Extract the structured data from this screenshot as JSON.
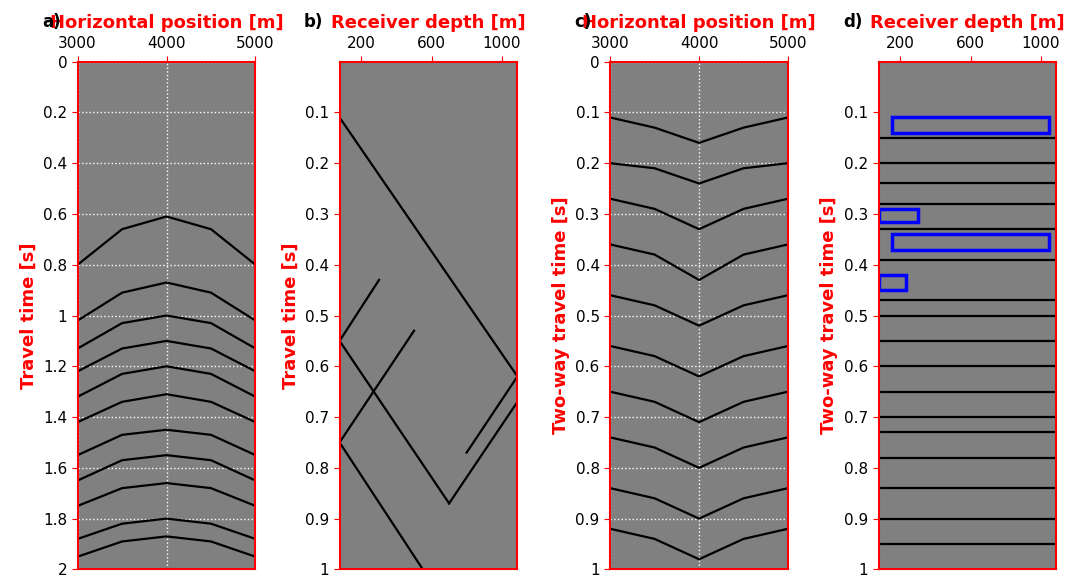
{
  "chart_data": [
    {
      "type": "line",
      "panel": "a)",
      "xlabel": "Horizontal position [m]",
      "ylabel": "Travel time [s]",
      "xlim": [
        3000,
        5000
      ],
      "xticks": [
        3000,
        4000,
        5000
      ],
      "ylim": [
        2,
        0
      ],
      "yticks": [
        0,
        0.2,
        0.4,
        0.6,
        0.8,
        1,
        1.2,
        1.4,
        1.6,
        1.8,
        2
      ],
      "grid": true,
      "color": "#000000",
      "events": [
        [
          [
            3000,
            0.8
          ],
          [
            3500,
            0.66
          ],
          [
            4000,
            0.61
          ],
          [
            4500,
            0.66
          ],
          [
            5000,
            0.8
          ]
        ],
        [
          [
            3000,
            1.02
          ],
          [
            3500,
            0.91
          ],
          [
            4000,
            0.87
          ],
          [
            4500,
            0.91
          ],
          [
            5000,
            1.02
          ]
        ],
        [
          [
            3000,
            1.13
          ],
          [
            3500,
            1.03
          ],
          [
            4000,
            1.0
          ],
          [
            4500,
            1.03
          ],
          [
            5000,
            1.13
          ]
        ],
        [
          [
            3000,
            1.22
          ],
          [
            3500,
            1.13
          ],
          [
            4000,
            1.1
          ],
          [
            4500,
            1.13
          ],
          [
            5000,
            1.22
          ]
        ],
        [
          [
            3000,
            1.32
          ],
          [
            3500,
            1.23
          ],
          [
            4000,
            1.2
          ],
          [
            4500,
            1.23
          ],
          [
            5000,
            1.32
          ]
        ],
        [
          [
            3000,
            1.42
          ],
          [
            3500,
            1.34
          ],
          [
            4000,
            1.31
          ],
          [
            4500,
            1.34
          ],
          [
            5000,
            1.42
          ]
        ],
        [
          [
            3000,
            1.55
          ],
          [
            3500,
            1.47
          ],
          [
            4000,
            1.45
          ],
          [
            4500,
            1.47
          ],
          [
            5000,
            1.55
          ]
        ],
        [
          [
            3000,
            1.65
          ],
          [
            3500,
            1.57
          ],
          [
            4000,
            1.55
          ],
          [
            4500,
            1.57
          ],
          [
            5000,
            1.65
          ]
        ],
        [
          [
            3000,
            1.75
          ],
          [
            3500,
            1.68
          ],
          [
            4000,
            1.66
          ],
          [
            4500,
            1.68
          ],
          [
            5000,
            1.75
          ]
        ],
        [
          [
            3000,
            1.88
          ],
          [
            3500,
            1.82
          ],
          [
            4000,
            1.8
          ],
          [
            4500,
            1.82
          ],
          [
            5000,
            1.88
          ]
        ],
        [
          [
            3000,
            1.95
          ],
          [
            3500,
            1.89
          ],
          [
            4000,
            1.87
          ],
          [
            4500,
            1.89
          ],
          [
            5000,
            1.95
          ]
        ]
      ]
    },
    {
      "type": "line",
      "panel": "b)",
      "xlabel": "Receiver depth [m]",
      "ylabel": "Travel time [s]",
      "xlim": [
        75,
        1090
      ],
      "xticks": [
        200,
        600,
        1000
      ],
      "ylim": [
        1,
        0
      ],
      "yticks": [
        0.1,
        0.2,
        0.3,
        0.4,
        0.5,
        0.6,
        0.7,
        0.8,
        0.9,
        1
      ],
      "grid": false,
      "color": "#000000",
      "events": [
        [
          [
            75,
            0.11
          ],
          [
            1090,
            0.62
          ]
        ],
        [
          [
            300,
            0.43
          ],
          [
            75,
            0.55
          ]
        ],
        [
          [
            500,
            0.53
          ],
          [
            75,
            0.75
          ]
        ],
        [
          [
            75,
            0.55
          ],
          [
            700,
            0.87
          ]
        ],
        [
          [
            75,
            0.75
          ],
          [
            550,
            1.0
          ]
        ],
        [
          [
            800,
            0.77
          ],
          [
            1090,
            0.62
          ]
        ],
        [
          [
            700,
            0.87
          ],
          [
            1090,
            0.67
          ]
        ]
      ]
    },
    {
      "type": "line",
      "panel": "c)",
      "xlabel": "Horizontal position [m]",
      "ylabel": "Two-way travel time [s]",
      "xlim": [
        3000,
        5000
      ],
      "xticks": [
        3000,
        4000,
        5000
      ],
      "ylim": [
        1,
        0
      ],
      "yticks": [
        0,
        0.1,
        0.2,
        0.3,
        0.4,
        0.5,
        0.6,
        0.7,
        0.8,
        0.9,
        1
      ],
      "grid": true,
      "color": "#000000",
      "events": [
        [
          [
            3000,
            0.11
          ],
          [
            3500,
            0.13
          ],
          [
            4000,
            0.16
          ],
          [
            4500,
            0.13
          ],
          [
            5000,
            0.11
          ]
        ],
        [
          [
            3000,
            0.2
          ],
          [
            3500,
            0.21
          ],
          [
            4000,
            0.24
          ],
          [
            4500,
            0.21
          ],
          [
            5000,
            0.2
          ]
        ],
        [
          [
            3000,
            0.27
          ],
          [
            3500,
            0.29
          ],
          [
            4000,
            0.33
          ],
          [
            4500,
            0.29
          ],
          [
            5000,
            0.27
          ]
        ],
        [
          [
            3000,
            0.36
          ],
          [
            3500,
            0.38
          ],
          [
            4000,
            0.43
          ],
          [
            4500,
            0.38
          ],
          [
            5000,
            0.36
          ]
        ],
        [
          [
            3000,
            0.46
          ],
          [
            3500,
            0.48
          ],
          [
            4000,
            0.52
          ],
          [
            4500,
            0.48
          ],
          [
            5000,
            0.46
          ]
        ],
        [
          [
            3000,
            0.56
          ],
          [
            3500,
            0.58
          ],
          [
            4000,
            0.62
          ],
          [
            4500,
            0.58
          ],
          [
            5000,
            0.56
          ]
        ],
        [
          [
            3000,
            0.65
          ],
          [
            3500,
            0.67
          ],
          [
            4000,
            0.71
          ],
          [
            4500,
            0.67
          ],
          [
            5000,
            0.65
          ]
        ],
        [
          [
            3000,
            0.74
          ],
          [
            3500,
            0.76
          ],
          [
            4000,
            0.8
          ],
          [
            4500,
            0.76
          ],
          [
            5000,
            0.74
          ]
        ],
        [
          [
            3000,
            0.84
          ],
          [
            3500,
            0.86
          ],
          [
            4000,
            0.9
          ],
          [
            4500,
            0.86
          ],
          [
            5000,
            0.84
          ]
        ],
        [
          [
            3000,
            0.92
          ],
          [
            3500,
            0.94
          ],
          [
            4000,
            0.98
          ],
          [
            4500,
            0.94
          ],
          [
            5000,
            0.92
          ]
        ]
      ]
    },
    {
      "type": "line",
      "panel": "d)",
      "xlabel": "Receiver depth [m]",
      "ylabel": "Two-way travel time [s]",
      "xlim": [
        75,
        1090
      ],
      "xticks": [
        200,
        600,
        1000
      ],
      "ylim": [
        1,
        0
      ],
      "yticks": [
        0.1,
        0.2,
        0.3,
        0.4,
        0.5,
        0.6,
        0.7,
        0.8,
        0.9,
        1
      ],
      "grid": false,
      "color": "#000000",
      "events": [
        [
          [
            75,
            0.15
          ],
          [
            1090,
            0.15
          ]
        ],
        [
          [
            75,
            0.2
          ],
          [
            1090,
            0.2
          ]
        ],
        [
          [
            75,
            0.24
          ],
          [
            1090,
            0.24
          ]
        ],
        [
          [
            75,
            0.28
          ],
          [
            1090,
            0.28
          ]
        ],
        [
          [
            75,
            0.33
          ],
          [
            1090,
            0.33
          ]
        ],
        [
          [
            75,
            0.39
          ],
          [
            1090,
            0.39
          ]
        ],
        [
          [
            75,
            0.47
          ],
          [
            1090,
            0.47
          ]
        ],
        [
          [
            75,
            0.5
          ],
          [
            1090,
            0.5
          ]
        ],
        [
          [
            75,
            0.55
          ],
          [
            1090,
            0.55
          ]
        ],
        [
          [
            75,
            0.6
          ],
          [
            1090,
            0.6
          ]
        ],
        [
          [
            75,
            0.65
          ],
          [
            1090,
            0.65
          ]
        ],
        [
          [
            75,
            0.7
          ],
          [
            1090,
            0.7
          ]
        ],
        [
          [
            75,
            0.73
          ],
          [
            1090,
            0.73
          ]
        ],
        [
          [
            75,
            0.78
          ],
          [
            1090,
            0.78
          ]
        ],
        [
          [
            75,
            0.84
          ],
          [
            1090,
            0.84
          ]
        ],
        [
          [
            75,
            0.9
          ],
          [
            1090,
            0.9
          ]
        ],
        [
          [
            75,
            0.95
          ],
          [
            1090,
            0.95
          ]
        ]
      ],
      "boxes": {
        "color": "#0000ff",
        "items": [
          {
            "x": [
              150,
              1050
            ],
            "y": [
              0.11,
              0.14
            ]
          },
          {
            "x": [
              80,
              300
            ],
            "y": [
              0.29,
              0.315
            ]
          },
          {
            "x": [
              150,
              1050
            ],
            "y": [
              0.34,
              0.37
            ]
          },
          {
            "x": [
              80,
              230
            ],
            "y": [
              0.42,
              0.45
            ]
          }
        ]
      }
    }
  ]
}
